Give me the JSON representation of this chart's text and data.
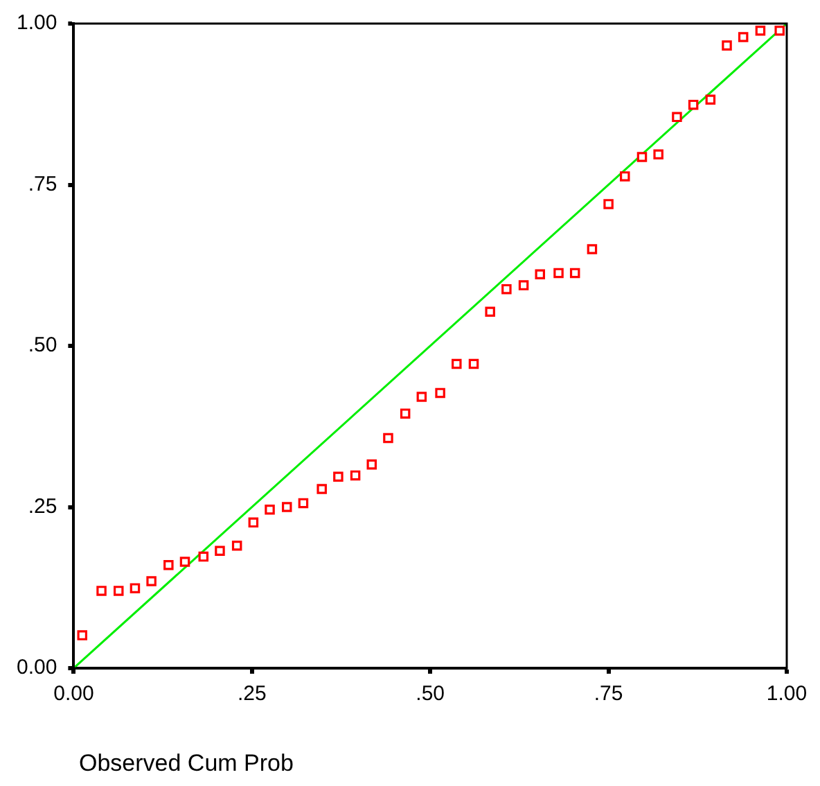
{
  "chart_data": {
    "type": "scatter",
    "xlabel": "Observed Cum Prob",
    "xlim": [
      0,
      1
    ],
    "ylim": [
      0,
      1
    ],
    "xticks": [
      {
        "value": 0,
        "label": "0.00"
      },
      {
        "value": 0.25,
        "label": ".25"
      },
      {
        "value": 0.5,
        "label": ".50"
      },
      {
        "value": 0.75,
        "label": ".75"
      },
      {
        "value": 1,
        "label": "1.00"
      }
    ],
    "yticks": [
      {
        "value": 0,
        "label": "0.00"
      },
      {
        "value": 0.25,
        "label": ".25"
      },
      {
        "value": 0.5,
        "label": ".50"
      },
      {
        "value": 0.75,
        "label": ".75"
      },
      {
        "value": 1,
        "label": "1.00"
      }
    ],
    "grid": false,
    "legend": false,
    "series": [
      {
        "type": "scatter",
        "color": "#ff0000",
        "marker": "square",
        "x": [
          0.012,
          0.039,
          0.063,
          0.086,
          0.109,
          0.133,
          0.156,
          0.182,
          0.205,
          0.229,
          0.252,
          0.275,
          0.299,
          0.322,
          0.348,
          0.371,
          0.395,
          0.418,
          0.441,
          0.465,
          0.488,
          0.514,
          0.537,
          0.561,
          0.584,
          0.607,
          0.631,
          0.654,
          0.68,
          0.703,
          0.727,
          0.75,
          0.773,
          0.797,
          0.82,
          0.846,
          0.869,
          0.893,
          0.916,
          0.939,
          0.963,
          0.99
        ],
        "values": [
          0.051,
          0.12,
          0.12,
          0.124,
          0.135,
          0.16,
          0.165,
          0.173,
          0.182,
          0.19,
          0.226,
          0.246,
          0.25,
          0.256,
          0.278,
          0.297,
          0.299,
          0.316,
          0.357,
          0.395,
          0.421,
          0.427,
          0.472,
          0.472,
          0.553,
          0.588,
          0.594,
          0.611,
          0.613,
          0.613,
          0.65,
          0.72,
          0.763,
          0.793,
          0.797,
          0.855,
          0.874,
          0.882,
          0.966,
          0.979,
          0.989,
          0.989
        ]
      },
      {
        "type": "line",
        "color": "#00ee00",
        "marker": "none",
        "line_style": "solid",
        "x": [
          0,
          1
        ],
        "values": [
          0,
          1
        ]
      }
    ]
  }
}
